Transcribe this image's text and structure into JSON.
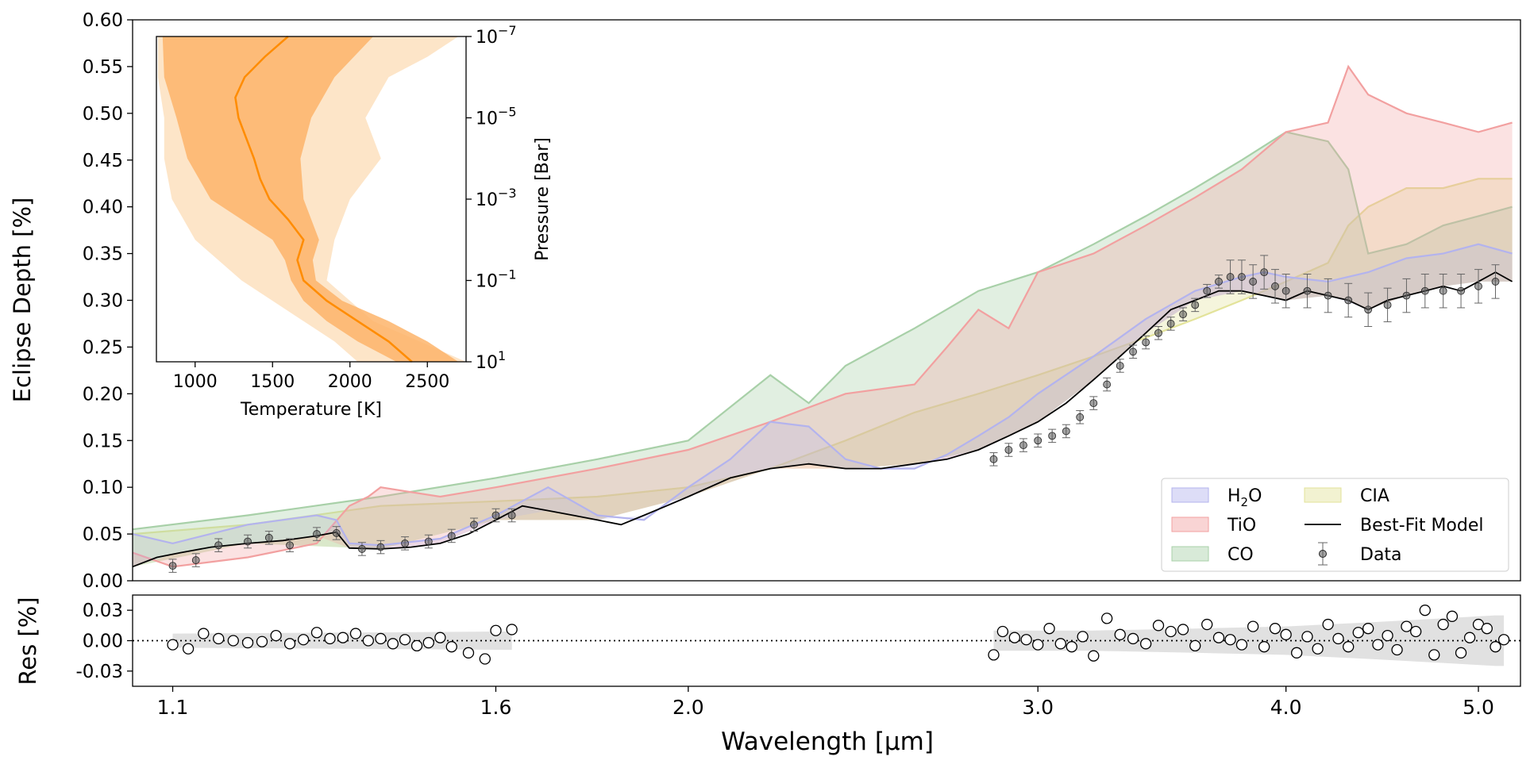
{
  "chart_data": [
    {
      "id": "main",
      "type": "area",
      "title": "",
      "xlabel": "Wavelength [μm]",
      "ylabel": "Eclipse Depth [%]",
      "xscale": "log",
      "xlim": [
        1.05,
        5.25
      ],
      "ylim": [
        0.0,
        0.6
      ],
      "yticks": [
        "0.00",
        "0.05",
        "0.10",
        "0.15",
        "0.20",
        "0.25",
        "0.30",
        "0.35",
        "0.40",
        "0.45",
        "0.50",
        "0.55",
        "0.60"
      ],
      "legend_position": "lower-right",
      "legend": [
        {
          "label_main": "H",
          "label_sub": "2",
          "label_end": "O",
          "color": "#b3b3ee",
          "kind": "patch"
        },
        {
          "label_main": "TiO",
          "label_sub": "",
          "label_end": "",
          "color": "#f2a0a0",
          "kind": "patch"
        },
        {
          "label_main": "CO",
          "label_sub": "",
          "label_end": "",
          "color": "#a8d0a8",
          "kind": "patch"
        },
        {
          "label_main": "CIA",
          "label_sub": "",
          "label_end": "",
          "color": "#e3e39a",
          "kind": "patch"
        },
        {
          "label_main": "Best-Fit Model",
          "label_sub": "",
          "label_end": "",
          "color": "#000000",
          "kind": "line"
        },
        {
          "label_main": "Data",
          "label_sub": "",
          "label_end": "",
          "color": "#555555",
          "kind": "errorbar"
        }
      ],
      "series": [
        {
          "name": "Best-Fit Model",
          "x": [
            1.05,
            1.08,
            1.11,
            1.15,
            1.2,
            1.25,
            1.3,
            1.33,
            1.35,
            1.4,
            1.45,
            1.5,
            1.55,
            1.6,
            1.65,
            1.7,
            1.75,
            1.8,
            1.85,
            1.9,
            1.95,
            2.0,
            2.1,
            2.2,
            2.3,
            2.4,
            2.5,
            2.6,
            2.7,
            2.8,
            2.9,
            3.0,
            3.1,
            3.2,
            3.3,
            3.4,
            3.5,
            3.6,
            3.7,
            3.8,
            3.9,
            4.0,
            4.1,
            4.2,
            4.3,
            4.4,
            4.5,
            4.6,
            4.7,
            4.8,
            4.9,
            5.0,
            5.1,
            5.2
          ],
          "y": [
            0.015,
            0.025,
            0.03,
            0.036,
            0.04,
            0.043,
            0.048,
            0.052,
            0.035,
            0.034,
            0.036,
            0.04,
            0.05,
            0.065,
            0.08,
            0.075,
            0.07,
            0.065,
            0.06,
            0.07,
            0.08,
            0.09,
            0.11,
            0.12,
            0.125,
            0.12,
            0.12,
            0.125,
            0.13,
            0.14,
            0.155,
            0.17,
            0.19,
            0.215,
            0.24,
            0.265,
            0.29,
            0.3,
            0.31,
            0.31,
            0.305,
            0.3,
            0.31,
            0.305,
            0.3,
            0.29,
            0.3,
            0.305,
            0.31,
            0.315,
            0.31,
            0.32,
            0.33,
            0.32
          ]
        },
        {
          "name": "H2O",
          "x": [
            1.05,
            1.1,
            1.2,
            1.3,
            1.33,
            1.35,
            1.4,
            1.5,
            1.6,
            1.7,
            1.8,
            1.9,
            2.0,
            2.1,
            2.2,
            2.3,
            2.4,
            2.5,
            2.6,
            2.7,
            2.8,
            2.9,
            3.0,
            3.2,
            3.4,
            3.6,
            3.8,
            3.9,
            4.0,
            4.2,
            4.4,
            4.6,
            4.8,
            5.0,
            5.2
          ],
          "y": [
            0.05,
            0.04,
            0.06,
            0.07,
            0.065,
            0.04,
            0.038,
            0.045,
            0.07,
            0.1,
            0.07,
            0.065,
            0.1,
            0.13,
            0.17,
            0.165,
            0.13,
            0.12,
            0.12,
            0.135,
            0.155,
            0.175,
            0.2,
            0.24,
            0.28,
            0.31,
            0.325,
            0.33,
            0.325,
            0.32,
            0.33,
            0.345,
            0.35,
            0.36,
            0.35
          ]
        },
        {
          "name": "TiO",
          "x": [
            1.05,
            1.1,
            1.2,
            1.3,
            1.35,
            1.38,
            1.4,
            1.5,
            1.6,
            1.8,
            2.0,
            2.2,
            2.4,
            2.6,
            2.7,
            2.8,
            2.9,
            3.0,
            3.2,
            3.4,
            3.6,
            3.8,
            4.0,
            4.2,
            4.3,
            4.4,
            4.6,
            4.8,
            5.0,
            5.2
          ],
          "y": [
            0.03,
            0.015,
            0.025,
            0.04,
            0.08,
            0.09,
            0.1,
            0.09,
            0.1,
            0.12,
            0.14,
            0.17,
            0.2,
            0.21,
            0.25,
            0.29,
            0.27,
            0.33,
            0.35,
            0.38,
            0.41,
            0.44,
            0.48,
            0.49,
            0.55,
            0.52,
            0.5,
            0.49,
            0.48,
            0.49
          ]
        },
        {
          "name": "CO",
          "x": [
            1.05,
            1.2,
            1.4,
            1.6,
            1.8,
            2.0,
            2.2,
            2.3,
            2.4,
            2.6,
            2.8,
            3.0,
            3.2,
            3.4,
            3.6,
            3.8,
            4.0,
            4.2,
            4.3,
            4.4,
            4.6,
            4.8,
            5.0,
            5.2
          ],
          "y": [
            0.055,
            0.07,
            0.09,
            0.11,
            0.13,
            0.15,
            0.22,
            0.19,
            0.23,
            0.27,
            0.31,
            0.33,
            0.36,
            0.39,
            0.42,
            0.45,
            0.48,
            0.47,
            0.44,
            0.35,
            0.36,
            0.38,
            0.39,
            0.4
          ]
        },
        {
          "name": "CIA",
          "x": [
            1.05,
            1.2,
            1.4,
            1.6,
            1.8,
            2.0,
            2.2,
            2.4,
            2.6,
            2.8,
            3.0,
            3.2,
            3.4,
            3.6,
            3.8,
            4.0,
            4.2,
            4.3,
            4.4,
            4.6,
            4.8,
            5.0,
            5.2
          ],
          "y": [
            0.05,
            0.06,
            0.08,
            0.085,
            0.09,
            0.1,
            0.12,
            0.15,
            0.18,
            0.2,
            0.22,
            0.24,
            0.26,
            0.28,
            0.3,
            0.32,
            0.34,
            0.38,
            0.4,
            0.42,
            0.42,
            0.43,
            0.43
          ]
        },
        {
          "name": "Data",
          "x": [
            1.1,
            1.13,
            1.16,
            1.2,
            1.23,
            1.26,
            1.3,
            1.33,
            1.37,
            1.4,
            1.44,
            1.48,
            1.52,
            1.56,
            1.6,
            1.63,
            2.85,
            2.9,
            2.95,
            3.0,
            3.05,
            3.1,
            3.15,
            3.2,
            3.25,
            3.3,
            3.35,
            3.4,
            3.45,
            3.5,
            3.55,
            3.6,
            3.65,
            3.7,
            3.75,
            3.8,
            3.85,
            3.9,
            3.95,
            4.0,
            4.1,
            4.2,
            4.3,
            4.4,
            4.5,
            4.6,
            4.7,
            4.8,
            4.9,
            5.0,
            5.1
          ],
          "y": [
            0.016,
            0.022,
            0.038,
            0.042,
            0.046,
            0.038,
            0.05,
            0.051,
            0.034,
            0.036,
            0.04,
            0.042,
            0.048,
            0.06,
            0.07,
            0.07,
            0.13,
            0.14,
            0.145,
            0.15,
            0.155,
            0.16,
            0.175,
            0.19,
            0.21,
            0.23,
            0.245,
            0.255,
            0.265,
            0.275,
            0.285,
            0.295,
            0.31,
            0.32,
            0.325,
            0.325,
            0.32,
            0.33,
            0.315,
            0.31,
            0.31,
            0.305,
            0.3,
            0.29,
            0.295,
            0.305,
            0.31,
            0.31,
            0.31,
            0.315,
            0.32
          ]
        }
      ]
    },
    {
      "id": "residuals",
      "type": "scatter",
      "xlabel": "Wavelength [μm]",
      "ylabel": "Res [%]",
      "xscale": "log",
      "xlim": [
        1.05,
        5.25
      ],
      "ylim": [
        -0.045,
        0.045
      ],
      "yticks": [
        "0.03",
        "0.00",
        "-0.03"
      ],
      "xticks": [
        "1.1",
        "1.6",
        "2.0",
        "3.0",
        "4.0",
        "5.0"
      ],
      "series": [
        {
          "name": "Residuals",
          "x": [
            1.1,
            1.12,
            1.14,
            1.16,
            1.18,
            1.2,
            1.22,
            1.24,
            1.26,
            1.28,
            1.3,
            1.32,
            1.34,
            1.36,
            1.38,
            1.4,
            1.42,
            1.44,
            1.46,
            1.48,
            1.5,
            1.52,
            1.55,
            1.58,
            1.6,
            1.63,
            2.85,
            2.88,
            2.92,
            2.96,
            3.0,
            3.04,
            3.08,
            3.12,
            3.16,
            3.2,
            3.25,
            3.3,
            3.35,
            3.4,
            3.45,
            3.5,
            3.55,
            3.6,
            3.65,
            3.7,
            3.75,
            3.8,
            3.85,
            3.9,
            3.95,
            4.0,
            4.05,
            4.1,
            4.15,
            4.2,
            4.25,
            4.3,
            4.35,
            4.4,
            4.45,
            4.5,
            4.55,
            4.6,
            4.65,
            4.7,
            4.75,
            4.8,
            4.85,
            4.9,
            4.95,
            5.0,
            5.05,
            5.1,
            5.15
          ],
          "y": [
            -0.004,
            -0.008,
            0.007,
            0.002,
            0.0,
            -0.002,
            -0.001,
            0.005,
            -0.003,
            0.001,
            0.008,
            0.002,
            0.003,
            0.007,
            0.0,
            0.002,
            -0.003,
            0.001,
            -0.005,
            -0.002,
            0.003,
            -0.006,
            -0.012,
            -0.018,
            0.01,
            0.011,
            -0.014,
            0.009,
            0.003,
            0.001,
            -0.004,
            0.012,
            -0.003,
            -0.006,
            0.004,
            -0.015,
            0.022,
            0.006,
            0.002,
            -0.003,
            0.015,
            0.009,
            0.011,
            -0.005,
            0.016,
            0.003,
            0.001,
            -0.004,
            0.014,
            -0.006,
            0.012,
            0.006,
            -0.012,
            0.004,
            -0.008,
            0.016,
            0.002,
            -0.006,
            0.008,
            0.012,
            -0.004,
            0.005,
            -0.009,
            0.014,
            0.009,
            0.03,
            -0.014,
            0.016,
            0.024,
            -0.012,
            0.003,
            0.016,
            0.012,
            -0.006,
            0.001
          ]
        },
        {
          "name": "Residual band (1σ)",
          "x": [
            1.1,
            1.35,
            1.6,
            1.63,
            2.85,
            3.2,
            3.6,
            4.0,
            4.4,
            4.8,
            5.1,
            5.15
          ],
          "y": [
            0.007,
            0.008,
            0.009,
            0.009,
            0.01,
            0.01,
            0.012,
            0.014,
            0.018,
            0.022,
            0.025,
            0.025
          ]
        }
      ]
    },
    {
      "id": "tp-profile",
      "type": "area",
      "xlabel": "Temperature [K]",
      "ylabel": "Pressure [Bar]",
      "xlim": [
        750,
        2750
      ],
      "yscale": "log",
      "ylim": [
        10,
        1e-07
      ],
      "xticks": [
        "1000",
        "1500",
        "2000",
        "2500"
      ],
      "yticks": [
        {
          "base": "10",
          "exp": "−7",
          "value": 1e-07
        },
        {
          "base": "10",
          "exp": "−5",
          "value": 1e-05
        },
        {
          "base": "10",
          "exp": "−3",
          "value": 0.001
        },
        {
          "base": "10",
          "exp": "−1",
          "value": 0.1
        },
        {
          "base": "10",
          "exp": "1",
          "value": 10
        }
      ],
      "colors": {
        "median": "#ff8c00",
        "band_1sigma": "#fdb46a",
        "band_2sigma": "#fde0be"
      },
      "series": [
        {
          "name": "Median T-P",
          "logP": [
            -7,
            -6.5,
            -6,
            -5.5,
            -5,
            -4.5,
            -4,
            -3.5,
            -3,
            -2.5,
            -2,
            -1.5,
            -1,
            -0.5,
            0,
            0.5,
            1
          ],
          "T": [
            1600,
            1450,
            1320,
            1260,
            1280,
            1330,
            1380,
            1420,
            1480,
            1600,
            1700,
            1660,
            1700,
            1850,
            2050,
            2250,
            2400
          ]
        },
        {
          "name": "1-sigma low",
          "logP": [
            -7,
            -6,
            -5,
            -4,
            -3,
            -2,
            -1.5,
            -1,
            -0.5,
            0,
            0.5,
            1
          ],
          "T": [
            790,
            800,
            880,
            950,
            1100,
            1500,
            1580,
            1620,
            1700,
            1850,
            2050,
            2300
          ]
        },
        {
          "name": "1-sigma high",
          "logP": [
            -7,
            -6,
            -5,
            -4,
            -3,
            -2,
            -1.5,
            -1,
            -0.5,
            0,
            0.5,
            1
          ],
          "T": [
            2150,
            1900,
            1750,
            1680,
            1700,
            1800,
            1760,
            1780,
            1950,
            2250,
            2500,
            2700
          ]
        },
        {
          "name": "2-sigma low",
          "logP": [
            -7,
            -6,
            -5,
            -4,
            -3,
            -2,
            -1,
            0,
            0.5,
            1
          ],
          "T": [
            760,
            760,
            800,
            800,
            850,
            1000,
            1300,
            1700,
            1900,
            2050
          ]
        },
        {
          "name": "2-sigma high",
          "logP": [
            -7,
            -6.5,
            -6,
            -5,
            -4,
            -3,
            -2,
            -1,
            0,
            0.5,
            1
          ],
          "T": [
            2700,
            2500,
            2250,
            2100,
            2200,
            2000,
            1900,
            1850,
            2150,
            2450,
            2750
          ]
        }
      ]
    }
  ]
}
